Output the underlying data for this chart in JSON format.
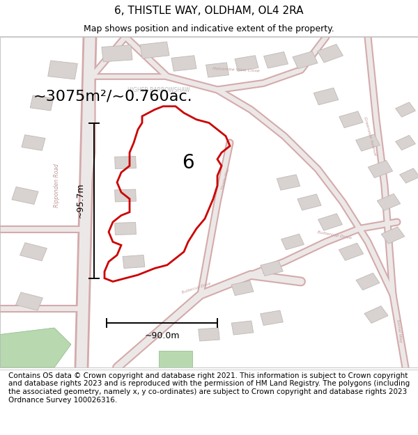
{
  "title": "6, THISTLE WAY, OLDHAM, OL4 2RA",
  "subtitle": "Map shows position and indicative extent of the property.",
  "footer": "Contains OS data © Crown copyright and database right 2021. This information is subject to Crown copyright and database rights 2023 and is reproduced with the permission of HM Land Registry. The polygons (including the associated geometry, namely x, y co-ordinates) are subject to Crown copyright and database rights 2023 Ordnance Survey 100026316.",
  "area_label": "~3075m²/~0.760ac.",
  "width_label": "~90.0m",
  "height_label": "~95.7m",
  "plot_number": "6",
  "map_bg": "#f2eded",
  "highlight_color": "#cc0000",
  "green_area": "#b8d8b0",
  "road_fill": "#ede8e8",
  "road_edge": "#d4aaaa",
  "building_fill": "#d8d3d0",
  "building_edge": "#c0b8b5",
  "label_color": "#c09898",
  "grey_label": "#aaaaaa",
  "title_fontsize": 11,
  "subtitle_fontsize": 9,
  "footer_fontsize": 7.5,
  "area_fontsize": 16,
  "plot_num_fontsize": 20,
  "measure_fontsize": 9
}
